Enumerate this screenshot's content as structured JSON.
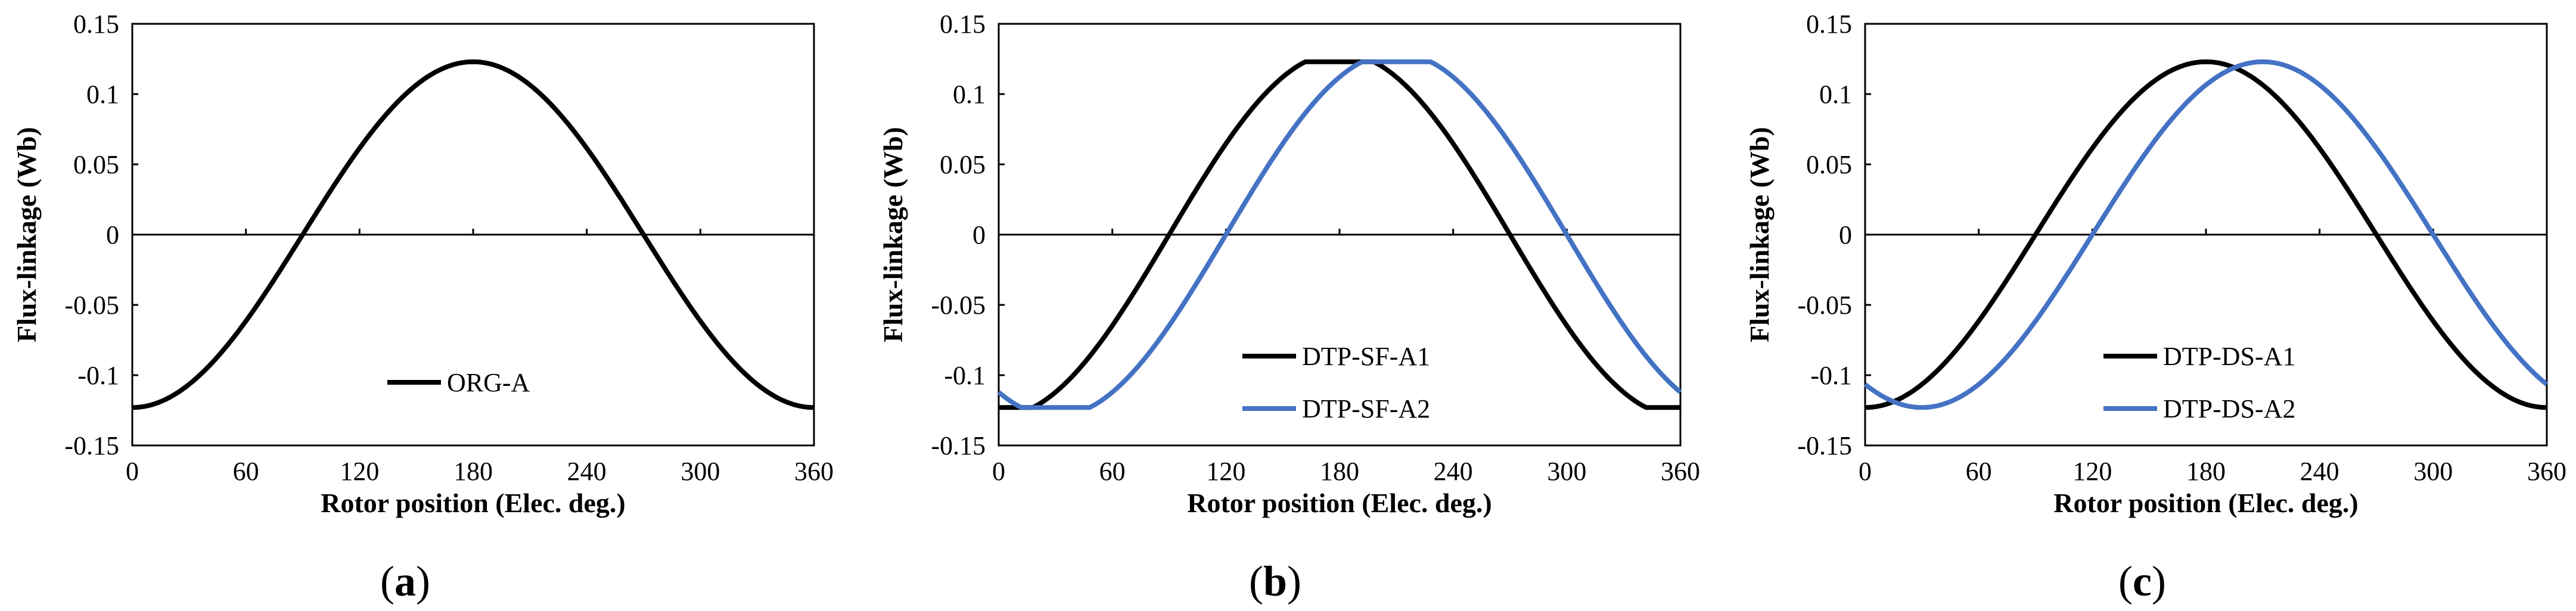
{
  "chart_data": [
    {
      "type": "line",
      "panel_label": "a",
      "xlabel": "Rotor position (Elec. deg.)",
      "ylabel": "Flux-linkage (Wb)",
      "xlim": [
        0,
        360
      ],
      "ylim": [
        -0.15,
        0.15
      ],
      "x_ticks": [
        "0",
        "60",
        "120",
        "180",
        "240",
        "300",
        "360"
      ],
      "y_ticks": [
        "0.15",
        "0.1",
        "0.05",
        "0",
        "-0.05",
        "-0.1",
        "-0.15"
      ],
      "legend_position": "bottom-center",
      "series": [
        {
          "name": "ORG-A",
          "color": "#000000",
          "phase_shift_deg": 0,
          "amplitude": 0.123
        }
      ]
    },
    {
      "type": "line",
      "panel_label": "b",
      "xlabel": "Rotor position (Elec. deg.)",
      "ylabel": "Flux-linkage (Wb)",
      "xlim": [
        0,
        360
      ],
      "ylim": [
        -0.15,
        0.15
      ],
      "x_ticks": [
        "0",
        "60",
        "120",
        "180",
        "240",
        "300",
        "360"
      ],
      "y_ticks": [
        "0.15",
        "0.1",
        "0.05",
        "0",
        "-0.05",
        "-0.1",
        "-0.15"
      ],
      "legend_position": "bottom-center",
      "series": [
        {
          "name": "DTP-SF-A1",
          "color": "#000000",
          "phase_shift_deg": 0,
          "amplitude": 0.123,
          "flat_clip": 0.95
        },
        {
          "name": "DTP-SF-A2",
          "color": "#4472c4",
          "phase_shift_deg": 30,
          "amplitude": 0.123,
          "flat_clip": 0.95
        }
      ]
    },
    {
      "type": "line",
      "panel_label": "c",
      "xlabel": "Rotor position (Elec. deg.)",
      "ylabel": "Flux-linkage (Wb)",
      "xlim": [
        0,
        360
      ],
      "ylim": [
        -0.15,
        0.15
      ],
      "x_ticks": [
        "0",
        "60",
        "120",
        "180",
        "240",
        "300",
        "360"
      ],
      "y_ticks": [
        "0.15",
        "0.1",
        "0.05",
        "0",
        "-0.05",
        "-0.1",
        "-0.15"
      ],
      "legend_position": "bottom-center",
      "series": [
        {
          "name": "DTP-DS-A1",
          "color": "#000000",
          "phase_shift_deg": 0,
          "amplitude": 0.123
        },
        {
          "name": "DTP-DS-A2",
          "color": "#4472c4",
          "phase_shift_deg": 30,
          "amplitude": 0.123
        }
      ]
    }
  ]
}
